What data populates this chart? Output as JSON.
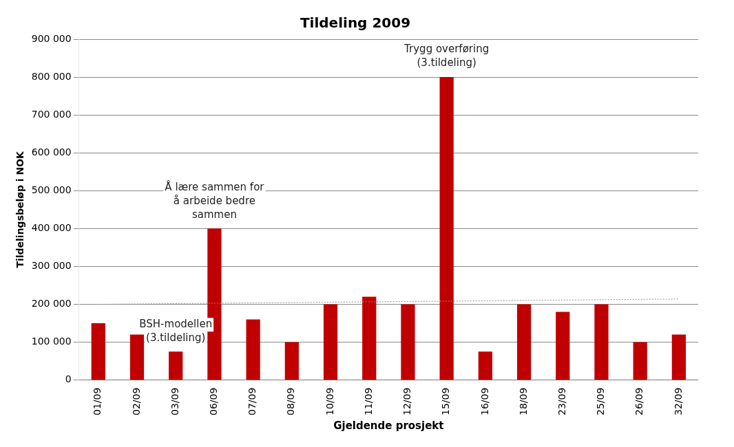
{
  "chart_data": {
    "type": "bar",
    "title": "Tildeling 2009",
    "xlabel": "Gjeldende prosjekt",
    "ylabel": "Tildelingsbeløp i NOK",
    "categories": [
      "01/09",
      "02/09",
      "03/09",
      "06/09",
      "07/09",
      "08/09",
      "10/09",
      "11/09",
      "12/09",
      "15/09",
      "16/09",
      "18/09",
      "23/09",
      "25/09",
      "26/09",
      "32/09"
    ],
    "series": [
      {
        "color": "#c00000",
        "values": [
          150000,
          120000,
          75000,
          400000,
          160000,
          100000,
          200000,
          220000,
          200000,
          800000,
          75000,
          200000,
          180000,
          200000,
          100000,
          120000
        ]
      },
      {
        "type": "line",
        "color": "#909090",
        "line_style": "dotted",
        "marker": "none",
        "x": [
          "01/09",
          "32/09"
        ],
        "values": [
          200000,
          214000
        ]
      }
    ],
    "ylim": [
      0,
      900000
    ],
    "yticks": [
      {
        "value": 0,
        "label": "0"
      },
      {
        "value": 100000,
        "label": "100 000"
      },
      {
        "value": 200000,
        "label": "200 000"
      },
      {
        "value": 300000,
        "label": "300 000"
      },
      {
        "value": 400000,
        "label": "400 000"
      },
      {
        "value": 500000,
        "label": "500 000"
      },
      {
        "value": 600000,
        "label": "600 000"
      },
      {
        "value": 700000,
        "label": "700 000"
      },
      {
        "value": 800000,
        "label": "800 000"
      },
      {
        "value": 900000,
        "label": "900 000"
      }
    ],
    "grid": "y",
    "legend": false,
    "annotations": [
      {
        "text": "BSH-modellen\n(3.tildeling)",
        "x": "03/09",
        "y": 75000
      },
      {
        "text": "Å lære sammen for\nå arbeide bedre\nsammen",
        "x": "06/09",
        "y": 400000
      },
      {
        "text": "Trygg overføring\n(3.tildeling)",
        "x": "15/09",
        "y": 800000
      }
    ]
  }
}
